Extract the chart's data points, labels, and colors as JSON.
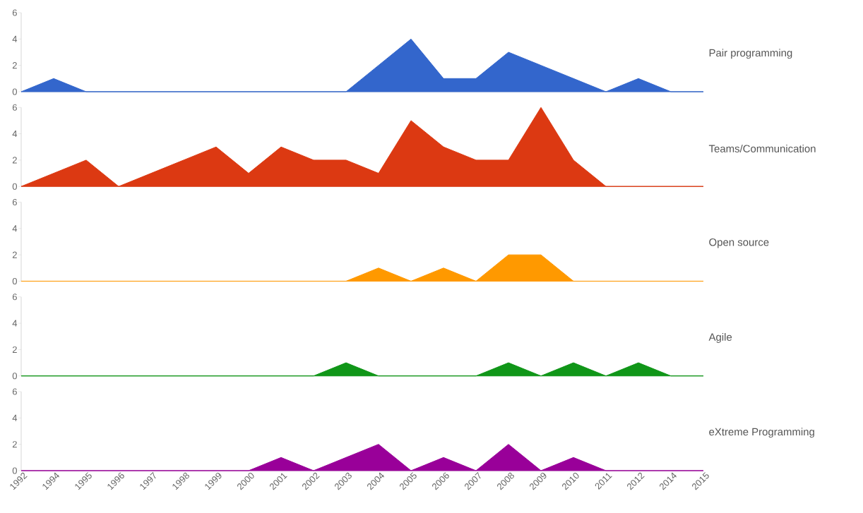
{
  "chart_data": [
    {
      "type": "area",
      "categories": [
        "1992",
        "1994",
        "1995",
        "1996",
        "1997",
        "1998",
        "1999",
        "2000",
        "2001",
        "2002",
        "2003",
        "2004",
        "2005",
        "2006",
        "2007",
        "2008",
        "2009",
        "2010",
        "2011",
        "2012",
        "2014",
        "2015"
      ],
      "ylim": [
        0,
        6
      ],
      "yticks": [
        0,
        2,
        4,
        6
      ],
      "tick_labels": "y",
      "series": [
        {
          "name": "Pair programming",
          "color": "#3366cc",
          "values": [
            0,
            1,
            0,
            0,
            0,
            0,
            0,
            0,
            0,
            0,
            0,
            2,
            4,
            1,
            1,
            3,
            2,
            1,
            0,
            1,
            0,
            0
          ]
        }
      ]
    },
    {
      "type": "area",
      "categories": [
        "1992",
        "1994",
        "1995",
        "1996",
        "1997",
        "1998",
        "1999",
        "2000",
        "2001",
        "2002",
        "2003",
        "2004",
        "2005",
        "2006",
        "2007",
        "2008",
        "2009",
        "2010",
        "2011",
        "2012",
        "2014",
        "2015"
      ],
      "ylim": [
        0,
        6
      ],
      "yticks": [
        0,
        2,
        4,
        6
      ],
      "tick_labels": "y",
      "series": [
        {
          "name": "Teams/Communication",
          "color": "#dc3912",
          "values": [
            0,
            1,
            2,
            0,
            1,
            2,
            3,
            1,
            3,
            2,
            2,
            1,
            5,
            3,
            2,
            2,
            6,
            2,
            0,
            0,
            0,
            0
          ]
        }
      ]
    },
    {
      "type": "area",
      "categories": [
        "1992",
        "1994",
        "1995",
        "1996",
        "1997",
        "1998",
        "1999",
        "2000",
        "2001",
        "2002",
        "2003",
        "2004",
        "2005",
        "2006",
        "2007",
        "2008",
        "2009",
        "2010",
        "2011",
        "2012",
        "2014",
        "2015"
      ],
      "ylim": [
        0,
        6
      ],
      "yticks": [
        0,
        2,
        4,
        6
      ],
      "tick_labels": "y",
      "series": [
        {
          "name": "Open source",
          "color": "#ff9900",
          "values": [
            0,
            0,
            0,
            0,
            0,
            0,
            0,
            0,
            0,
            0,
            0,
            1,
            0,
            1,
            0,
            2,
            2,
            0,
            0,
            0,
            0,
            0
          ]
        }
      ]
    },
    {
      "type": "area",
      "categories": [
        "1992",
        "1994",
        "1995",
        "1996",
        "1997",
        "1998",
        "1999",
        "2000",
        "2001",
        "2002",
        "2003",
        "2004",
        "2005",
        "2006",
        "2007",
        "2008",
        "2009",
        "2010",
        "2011",
        "2012",
        "2014",
        "2015"
      ],
      "ylim": [
        0,
        6
      ],
      "yticks": [
        0,
        2,
        4,
        6
      ],
      "tick_labels": "y",
      "series": [
        {
          "name": "Agile",
          "color": "#109618",
          "values": [
            0,
            0,
            0,
            0,
            0,
            0,
            0,
            0,
            0,
            0,
            1,
            0,
            0,
            0,
            0,
            1,
            0,
            1,
            0,
            1,
            0,
            0
          ]
        }
      ]
    },
    {
      "type": "area",
      "categories": [
        "1992",
        "1994",
        "1995",
        "1996",
        "1997",
        "1998",
        "1999",
        "2000",
        "2001",
        "2002",
        "2003",
        "2004",
        "2005",
        "2006",
        "2007",
        "2008",
        "2009",
        "2010",
        "2011",
        "2012",
        "2014",
        "2015"
      ],
      "ylim": [
        0,
        6
      ],
      "yticks": [
        0,
        2,
        4,
        6
      ],
      "series": [
        {
          "name": "eXtreme Programming",
          "color": "#990099",
          "values": [
            0,
            0,
            0,
            0,
            0,
            0,
            0,
            0,
            1,
            0,
            1,
            2,
            0,
            1,
            0,
            2,
            0,
            1,
            0,
            0,
            0,
            0
          ]
        }
      ]
    }
  ]
}
